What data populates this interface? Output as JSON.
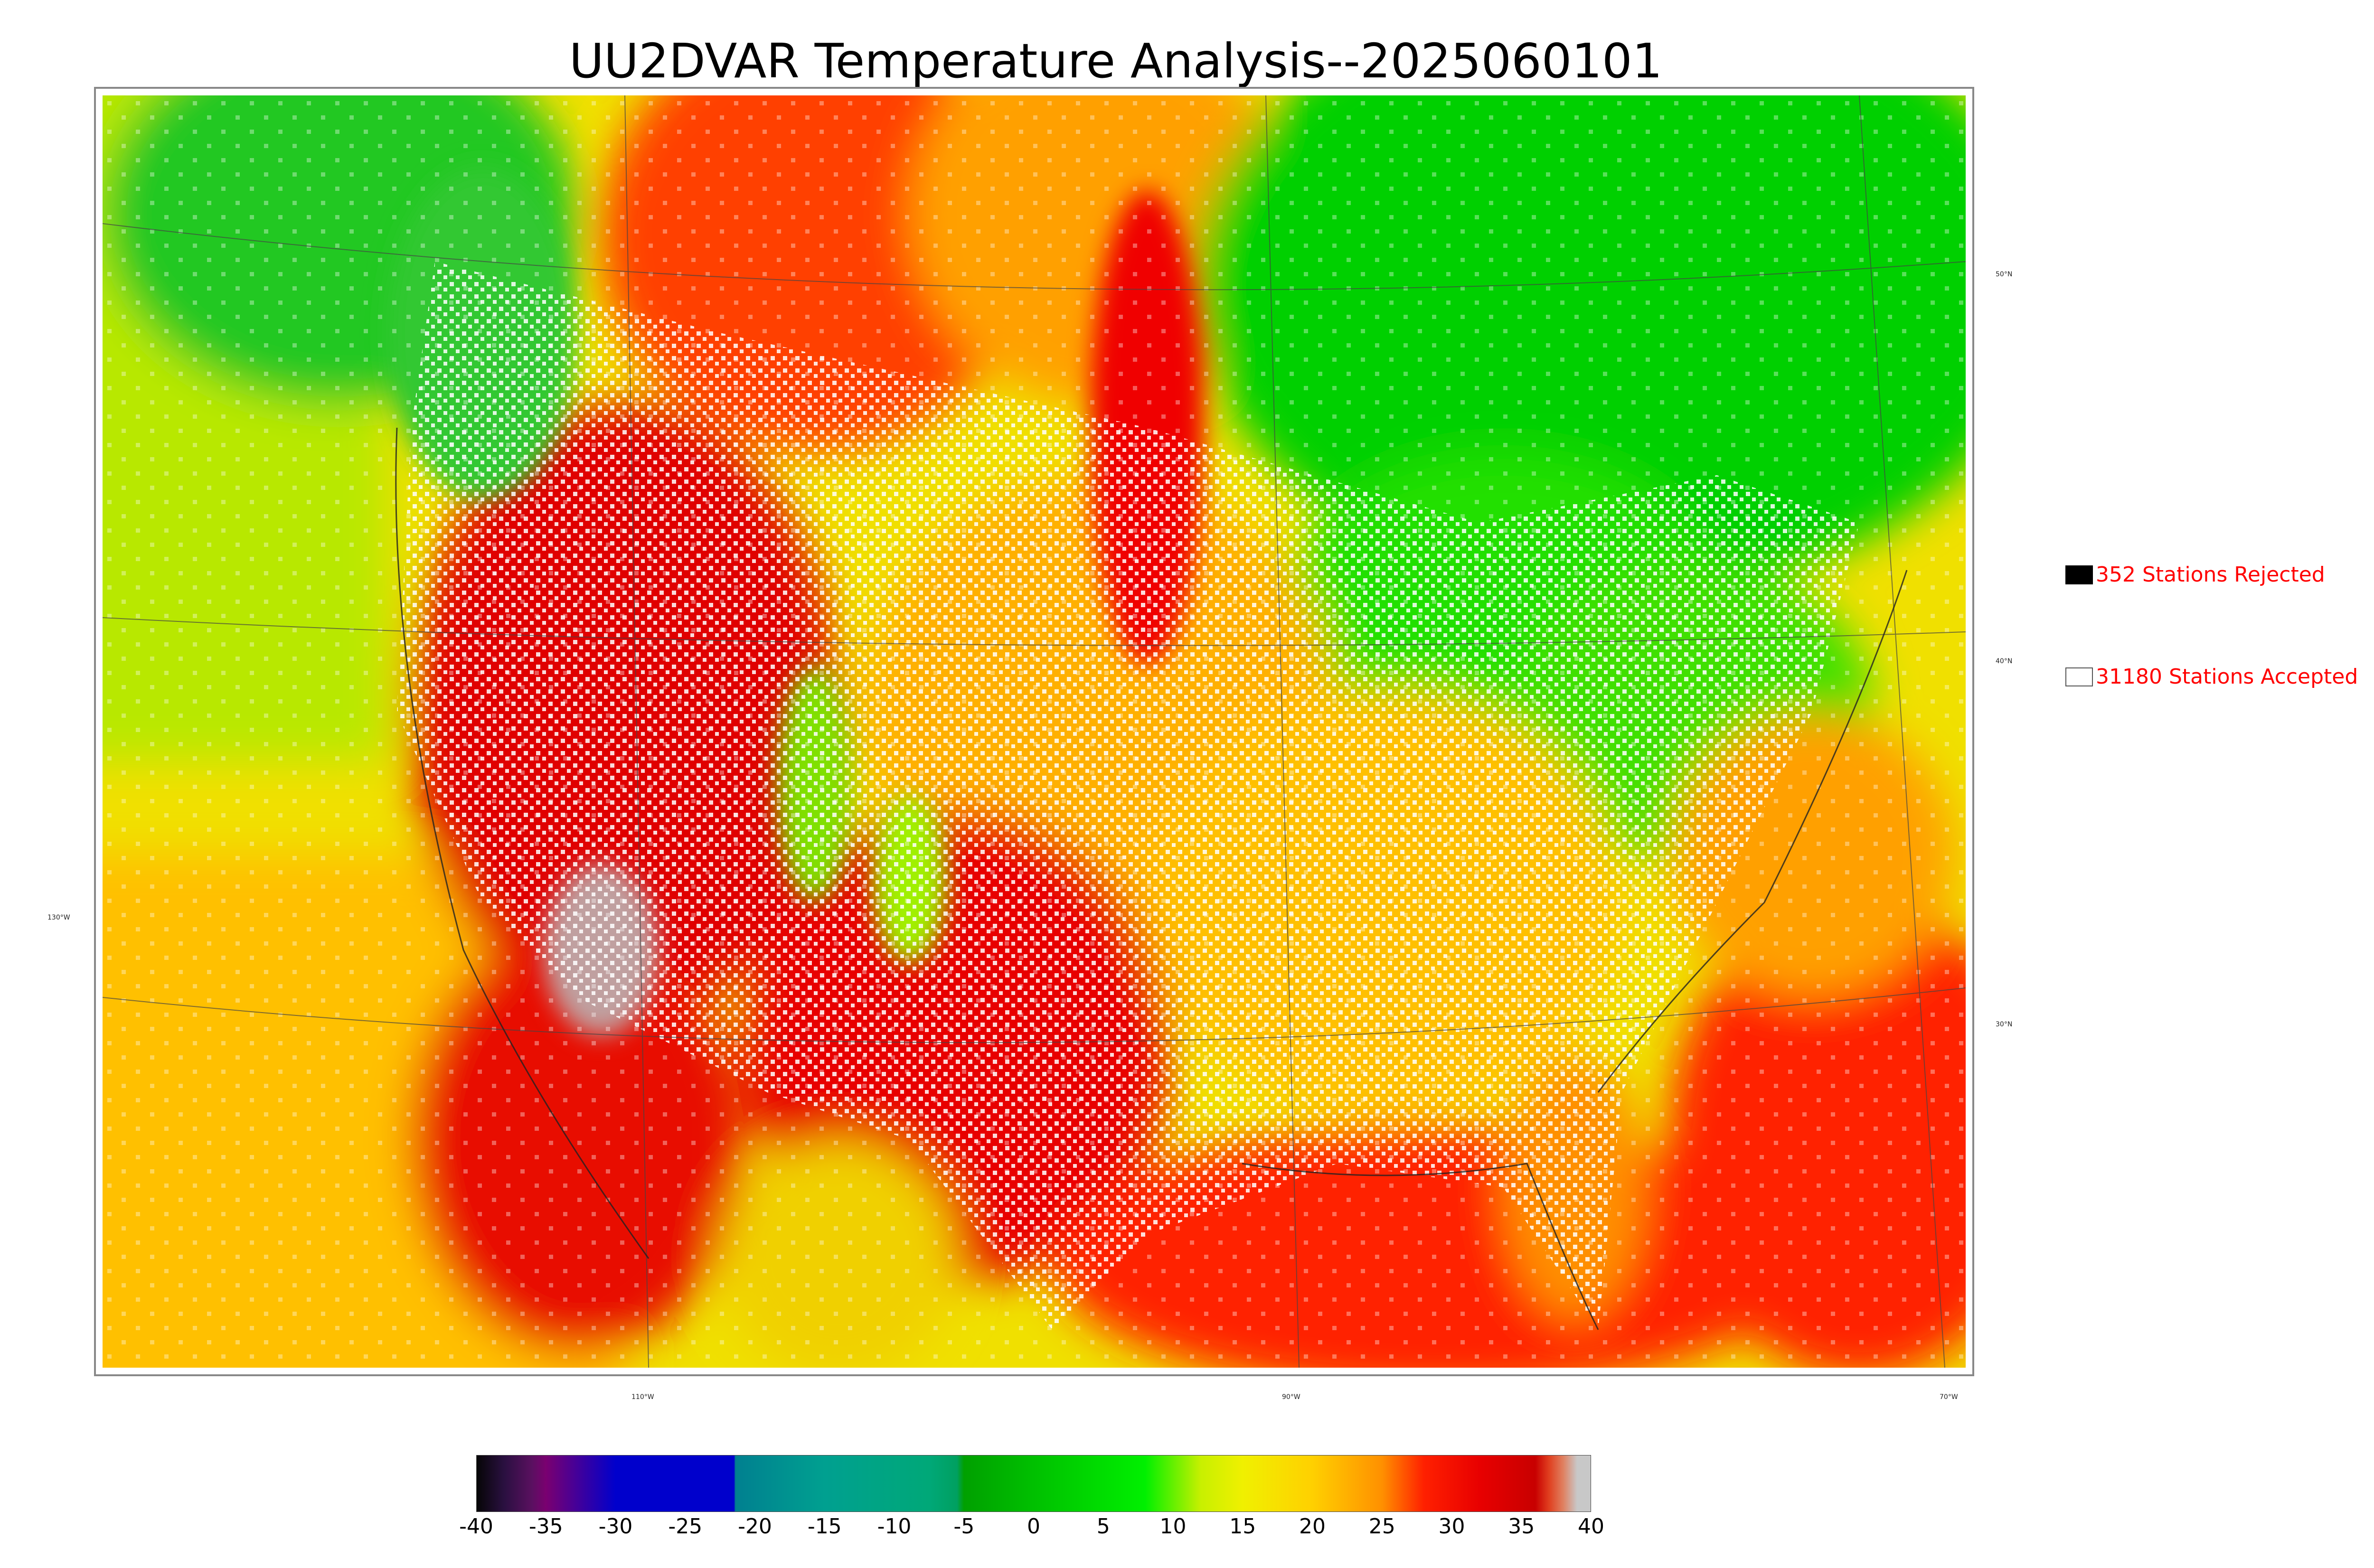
{
  "title": "UU2DVAR Temperature Analysis--2025060101",
  "graticule": {
    "lon_labels": [
      "110°W",
      "90°W",
      "70°W"
    ],
    "lat_labels": [
      "50°N",
      "40°N",
      "30°N"
    ],
    "left_lon_label": "130°W"
  },
  "legend": {
    "rejected": {
      "label": "352 Stations Rejected",
      "color": "#000000"
    },
    "accepted": {
      "label": "31180 Stations Accepted",
      "color": "#ffffff"
    }
  },
  "colorbar": {
    "ticks": [
      "-40",
      "-35",
      "-30",
      "-25",
      "-20",
      "-15",
      "-10",
      "-5",
      "0",
      "5",
      "10",
      "15",
      "20",
      "25",
      "30",
      "35",
      "40"
    ],
    "range": [
      -40,
      40
    ],
    "stops": [
      {
        "v": -40,
        "c": "#050505"
      },
      {
        "v": -38,
        "c": "#2a1040"
      },
      {
        "v": -36,
        "c": "#5a1060"
      },
      {
        "v": -35,
        "c": "#7a0070"
      },
      {
        "v": -30,
        "c": "#0000cc"
      },
      {
        "v": -21.5,
        "c": "#0000cc"
      },
      {
        "v": -21.4,
        "c": "#008090"
      },
      {
        "v": -15,
        "c": "#00a090"
      },
      {
        "v": -7.5,
        "c": "#00a878"
      },
      {
        "v": -5.5,
        "c": "#00a060"
      },
      {
        "v": -5,
        "c": "#00a000"
      },
      {
        "v": 0,
        "c": "#00c000"
      },
      {
        "v": 8,
        "c": "#00f000"
      },
      {
        "v": 12,
        "c": "#c8f000"
      },
      {
        "v": 15,
        "c": "#f0f000"
      },
      {
        "v": 20,
        "c": "#ffd000"
      },
      {
        "v": 25,
        "c": "#ff9000"
      },
      {
        "v": 28,
        "c": "#ff2000"
      },
      {
        "v": 32,
        "c": "#e80000"
      },
      {
        "v": 36,
        "c": "#c80000"
      },
      {
        "v": 37,
        "c": "#e04020"
      },
      {
        "v": 38,
        "c": "#e08060"
      },
      {
        "v": 39,
        "c": "#c8c8c8"
      },
      {
        "v": 40,
        "c": "#c8c8c8"
      }
    ]
  }
}
